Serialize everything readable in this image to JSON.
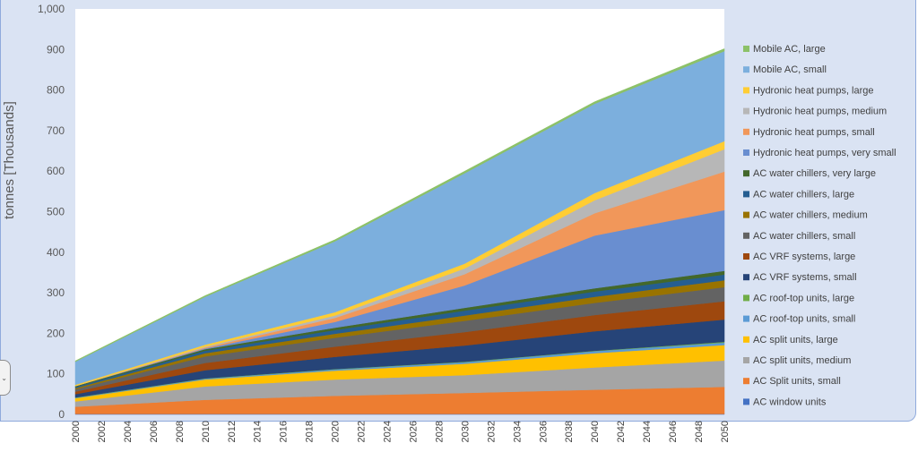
{
  "chart_data": {
    "type": "area",
    "stacked": true,
    "title": "",
    "xlabel": "",
    "ylabel": "tonnes [Thousands]",
    "ylim": [
      0,
      1000
    ],
    "yticks": [
      0,
      100,
      200,
      300,
      400,
      500,
      600,
      700,
      800,
      900,
      1000
    ],
    "ytick_labels": [
      "0",
      "100",
      "200",
      "300",
      "400",
      "500",
      "600",
      "700",
      "800",
      "900",
      "1,000"
    ],
    "x": [
      2000,
      2010,
      2020,
      2030,
      2040,
      2050
    ],
    "xtick_labels": [
      "2000",
      "2002",
      "2004",
      "2006",
      "2008",
      "2010",
      "2012",
      "2014",
      "2016",
      "2018",
      "2020",
      "2022",
      "2024",
      "2026",
      "2028",
      "2030",
      "2032",
      "2034",
      "2036",
      "2038",
      "2040",
      "2042",
      "2044",
      "2046",
      "2048",
      "2050"
    ],
    "legend_position": "right",
    "series": [
      {
        "name": "AC window units",
        "color": "#4472c4",
        "values": [
          1,
          1,
          1,
          1,
          1,
          1
        ]
      },
      {
        "name": "AC Split units, small",
        "color": "#ed7d31",
        "values": [
          18,
          35,
          45,
          52,
          60,
          67
        ]
      },
      {
        "name": "AC split units, medium",
        "color": "#a5a5a5",
        "values": [
          13,
          33,
          40,
          44,
          55,
          65
        ]
      },
      {
        "name": "AC split units, large",
        "color": "#ffc000",
        "values": [
          8,
          17,
          22,
          28,
          35,
          38
        ]
      },
      {
        "name": "AC roof-top units, small",
        "color": "#5b9bd5",
        "values": [
          1,
          2,
          3,
          4,
          5,
          6
        ]
      },
      {
        "name": "AC roof-top units, large",
        "color": "#70ad47",
        "values": [
          1,
          1,
          1,
          1,
          1,
          2
        ]
      },
      {
        "name": "AC VRF systems, small",
        "color": "#264478",
        "values": [
          8,
          20,
          30,
          40,
          48,
          55
        ]
      },
      {
        "name": "AC VRF systems, large",
        "color": "#9e480e",
        "values": [
          6,
          18,
          25,
          33,
          40,
          45
        ]
      },
      {
        "name": "AC water chillers, small",
        "color": "#636363",
        "values": [
          6,
          16,
          22,
          28,
          30,
          35
        ]
      },
      {
        "name": "AC water chillers, medium",
        "color": "#997300",
        "values": [
          3,
          8,
          10,
          13,
          15,
          17
        ]
      },
      {
        "name": "AC water chillers, large",
        "color": "#255e91",
        "values": [
          3,
          6,
          9,
          12,
          13,
          14
        ]
      },
      {
        "name": "AC water chillers, very large",
        "color": "#43682b",
        "values": [
          2,
          4,
          6,
          7,
          8,
          9
        ]
      },
      {
        "name": "Hydronic heat pumps, very small",
        "color": "#698ed0",
        "values": [
          0,
          2,
          14,
          55,
          130,
          150
        ]
      },
      {
        "name": "Hydronic heat pumps, small",
        "color": "#f1975a",
        "values": [
          0,
          2,
          10,
          28,
          55,
          95
        ]
      },
      {
        "name": "Hydronic heat pumps, medium",
        "color": "#b7b7b7",
        "values": [
          0,
          2,
          6,
          14,
          32,
          55
        ]
      },
      {
        "name": "Hydronic heat pumps, large",
        "color": "#ffcd33",
        "values": [
          3,
          5,
          8,
          12,
          18,
          20
        ]
      },
      {
        "name": "Mobile AC, small",
        "color": "#7cafdd",
        "values": [
          57,
          118,
          175,
          223,
          220,
          222
        ]
      },
      {
        "name": "Mobile AC, large",
        "color": "#8cc168",
        "values": [
          2,
          3,
          4,
          5,
          5,
          6
        ]
      }
    ]
  }
}
